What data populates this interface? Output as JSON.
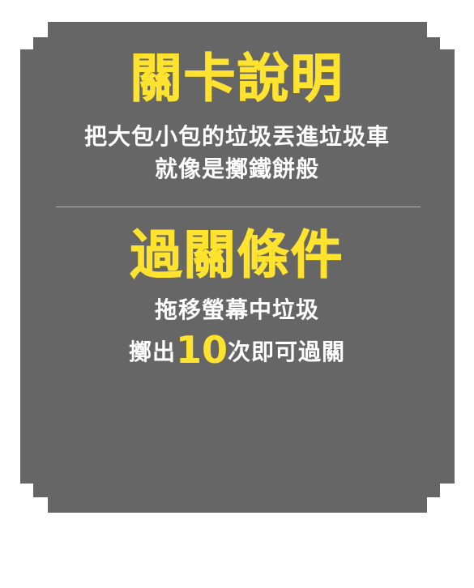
{
  "colors": {
    "panel": "#666666",
    "heading": "#ffe32e",
    "body_text": "#ffffff",
    "divider": "#b3b3b3",
    "background": "#ffffff"
  },
  "level_info": {
    "title": "關卡說明",
    "line1": "把大包小包的垃圾丟進垃圾車",
    "line2": "就像是擲鐵餅般"
  },
  "clear_condition": {
    "title": "過關條件",
    "line1": "拖移螢幕中垃圾",
    "line2_prefix": "擲出",
    "line2_number": "10",
    "line2_suffix": "次即可過關"
  }
}
